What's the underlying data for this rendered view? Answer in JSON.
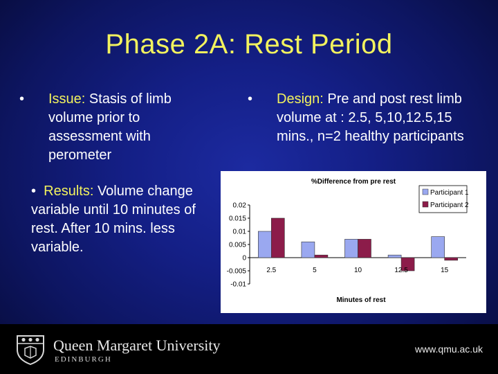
{
  "slide": {
    "title": "Phase 2A: Rest Period",
    "bullets": {
      "symbol": "•",
      "issue": {
        "key": "Issue:",
        "text": " Stasis of limb volume prior to assessment with perometer"
      },
      "design": {
        "key": "Design:",
        "text": " Pre and post rest limb volume at : 2.5, 5,10,12.5,15 mins., n=2 healthy participants"
      },
      "results": {
        "key": "Results:",
        "text": " Volume change variable until 10 minutes of rest. After 10 mins. less variable."
      }
    }
  },
  "chart_data": {
    "type": "bar",
    "title": "%Difference from pre rest",
    "xlabel": "Minutes of rest",
    "ylabel": "",
    "categories": [
      "2.5",
      "5",
      "10",
      "12.5",
      "15"
    ],
    "series": [
      {
        "name": "Participant 1",
        "values": [
          0.01,
          0.006,
          0.007,
          0.001,
          0.008
        ],
        "color": "#9aa8f0"
      },
      {
        "name": "Participant 2",
        "values": [
          0.015,
          0.001,
          0.007,
          -0.005,
          -0.001
        ],
        "color": "#8c1c4a"
      }
    ],
    "ylim": [
      -0.01,
      0.02
    ],
    "yticks": [
      "0.02",
      "0.015",
      "0.01",
      "0.005",
      "0",
      "-0.005",
      "-0.01"
    ],
    "ytick_values": [
      0.02,
      0.015,
      0.01,
      0.005,
      0,
      -0.005,
      -0.01
    ],
    "grid": false,
    "legend": "right"
  },
  "footer": {
    "university": "Queen Margaret University",
    "city": "EDINBURGH",
    "website": "www.qmu.ac.uk"
  },
  "colors": {
    "accent": "#f2f25e",
    "background": "#141f86"
  }
}
